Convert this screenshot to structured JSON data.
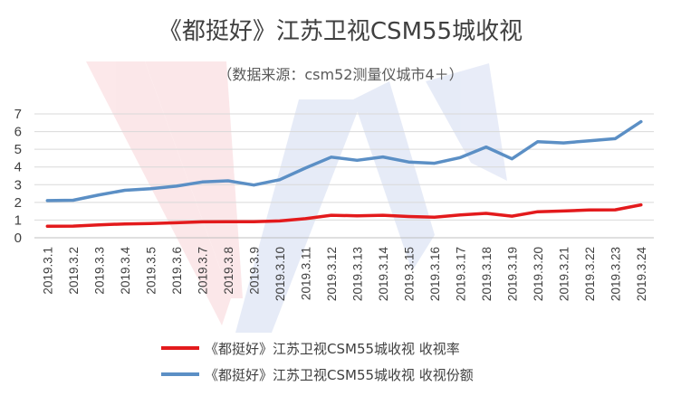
{
  "chart_data": {
    "type": "line",
    "title": "《都挺好》江苏卫视CSM55城收视",
    "subtitle": "（数据来源：csm52测量仪城市4＋）",
    "categories": [
      "2019.3.1",
      "2019.3.2",
      "2019.3.3",
      "2019.3.4",
      "2019.3.5",
      "2019.3.6",
      "2019.3.7",
      "2019.3.8",
      "2019.3.9",
      "2019.3.10",
      "2019.3.11",
      "2019.3.12",
      "2019.3.13",
      "2019.3.14",
      "2019.3.15",
      "2019.3.16",
      "2019.3.17",
      "2019.3.18",
      "2019.3.19",
      "2019.3.20",
      "2019.3.21",
      "2019.3.22",
      "2019.3.23",
      "2019.3.24"
    ],
    "series": [
      {
        "name": "《都挺好》江苏卫视CSM55城收视 收视率",
        "color": "#e31a1c",
        "values": [
          0.65,
          0.66,
          0.73,
          0.78,
          0.8,
          0.85,
          0.9,
          0.91,
          0.91,
          0.95,
          1.08,
          1.27,
          1.24,
          1.27,
          1.2,
          1.16,
          1.29,
          1.38,
          1.22,
          1.47,
          1.51,
          1.57,
          1.58,
          1.86
        ]
      },
      {
        "name": "《都挺好》江苏卫视CSM55城收视 收视份额",
        "color": "#5b8fc5",
        "values": [
          2.1,
          2.12,
          2.42,
          2.68,
          2.77,
          2.92,
          3.15,
          3.22,
          2.98,
          3.28,
          3.94,
          4.56,
          4.38,
          4.57,
          4.28,
          4.21,
          4.53,
          5.13,
          4.46,
          5.43,
          5.36,
          5.48,
          5.6,
          6.56
        ]
      }
    ],
    "ylim": [
      0,
      7
    ],
    "yticks": [
      0,
      1,
      2,
      3,
      4,
      5,
      6,
      7
    ],
    "grid": true,
    "legend_position": "bottom"
  }
}
